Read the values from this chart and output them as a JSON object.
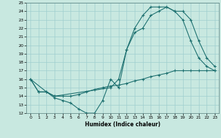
{
  "xlabel": "Humidex (Indice chaleur)",
  "xlim": [
    -0.5,
    23.5
  ],
  "ylim": [
    12,
    25
  ],
  "xticks": [
    0,
    1,
    2,
    3,
    4,
    5,
    6,
    7,
    8,
    9,
    10,
    11,
    12,
    13,
    14,
    15,
    16,
    17,
    18,
    19,
    20,
    21,
    22,
    23
  ],
  "yticks": [
    12,
    13,
    14,
    15,
    16,
    17,
    18,
    19,
    20,
    21,
    22,
    23,
    24,
    25
  ],
  "bg_color": "#c8e8e0",
  "grid_color": "#9ecece",
  "line_color": "#1a6e6e",
  "curves": {
    "line1": {
      "x": [
        0,
        1,
        2,
        3,
        4,
        5,
        6,
        7,
        8,
        9,
        10,
        11,
        12,
        13,
        14,
        15,
        16,
        17,
        18,
        19,
        20,
        21,
        22,
        23
      ],
      "y": [
        16,
        14.5,
        14.5,
        13.8,
        13.5,
        13.2,
        12.5,
        12.0,
        12.0,
        13.5,
        16.0,
        15.0,
        19.5,
        22.0,
        23.5,
        24.5,
        24.5,
        24.5,
        24.0,
        23.0,
        20.5,
        18.5,
        17.5,
        17.0
      ]
    },
    "line2": {
      "x": [
        0,
        1,
        2,
        3,
        4,
        5,
        6,
        7,
        8,
        9,
        10,
        11,
        12,
        13,
        14,
        15,
        16,
        17,
        18,
        19,
        20,
        21,
        22,
        23
      ],
      "y": [
        16,
        14.5,
        14.5,
        14.0,
        14.0,
        14.0,
        14.2,
        14.5,
        14.8,
        15.0,
        15.2,
        15.3,
        15.5,
        15.8,
        16.0,
        16.3,
        16.5,
        16.7,
        17.0,
        17.0,
        17.0,
        17.0,
        17.0,
        17.0
      ]
    },
    "line3": {
      "x": [
        0,
        2,
        3,
        10,
        11,
        12,
        13,
        14,
        15,
        16,
        17,
        18,
        19,
        20,
        21,
        22,
        23
      ],
      "y": [
        16,
        14.5,
        14.0,
        15.0,
        16.0,
        19.5,
        21.5,
        22.0,
        23.5,
        24.0,
        24.5,
        24.0,
        24.0,
        23.0,
        20.5,
        18.5,
        17.5
      ]
    }
  }
}
